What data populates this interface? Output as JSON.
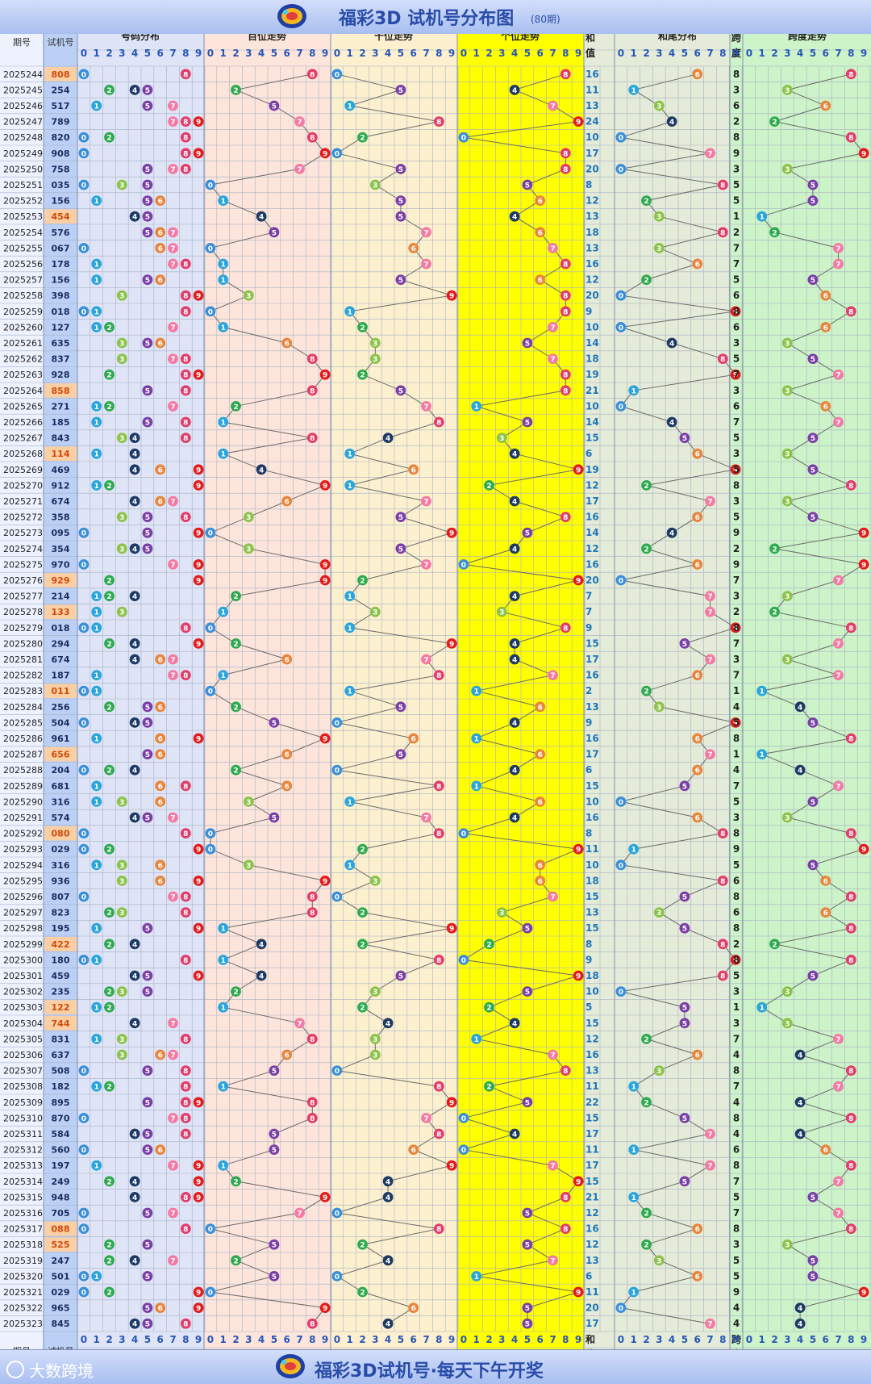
{
  "title": "福彩3D 试机号分布图",
  "title_sub": "(80期)",
  "footer_title": "福彩3D试机号·每天下午开奖",
  "watermark": "大数跨境",
  "header": {
    "issue": "期号",
    "code": "试机号",
    "dist": "号码分布",
    "hundreds": "百位走势",
    "tens": "十位走势",
    "units": "个位走势",
    "sum1": "和",
    "sum2": "值",
    "sumtail": "和尾分布",
    "span1": "跨",
    "span2": "度",
    "spantrend": "跨度走势"
  },
  "digits": [
    "0",
    "1",
    "2",
    "3",
    "4",
    "5",
    "6",
    "7",
    "8",
    "9"
  ],
  "colors": {
    "0": "#3a8fd9",
    "1": "#2aa5dc",
    "2": "#2eaa4f",
    "3": "#8cc34a",
    "4": "#1d3a66",
    "5": "#7a3fa6",
    "6": "#e9853a",
    "7": "#f57aa3",
    "8": "#e23d6a",
    "9": "#e51a1a"
  },
  "chart_data": {
    "type": "table",
    "start_issue": 2025244,
    "issues": [
      "2025244",
      "2025245",
      "2025246",
      "2025247",
      "2025248",
      "2025249",
      "2025250",
      "2025251",
      "2025252",
      "2025253",
      "2025254",
      "2025255",
      "2025256",
      "2025257",
      "2025258",
      "2025259",
      "2025260",
      "2025261",
      "2025262",
      "2025263",
      "2025264",
      "2025265",
      "2025266",
      "2025267",
      "2025268",
      "2025269",
      "2025270",
      "2025271",
      "2025272",
      "2025273",
      "2025274",
      "2025275",
      "2025276",
      "2025277",
      "2025278",
      "2025279",
      "2025280",
      "2025281",
      "2025282",
      "2025283",
      "2025284",
      "2025285",
      "2025286",
      "2025287",
      "2025288",
      "2025289",
      "2025290",
      "2025291",
      "2025292",
      "2025293",
      "2025294",
      "2025295",
      "2025296",
      "2025297",
      "2025298",
      "2025299",
      "2025300",
      "2025301",
      "2025302",
      "2025303",
      "2025304",
      "2025305",
      "2025306",
      "2025307",
      "2025308",
      "2025309",
      "2025310",
      "2025311",
      "2025312",
      "2025313",
      "2025314",
      "2025315",
      "2025316",
      "2025317",
      "2025318",
      "2025319",
      "2025320",
      "2025321",
      "2025322",
      "2025323"
    ],
    "codes": [
      "808",
      "254",
      "517",
      "789",
      "820",
      "908",
      "758",
      "035",
      "156",
      "454",
      "576",
      "067",
      "178",
      "156",
      "398",
      "018",
      "127",
      "635",
      "837",
      "928",
      "858",
      "271",
      "185",
      "843",
      "114",
      "469",
      "912",
      "674",
      "358",
      "095",
      "354",
      "970",
      "929",
      "214",
      "133",
      "018",
      "294",
      "674",
      "187",
      "011",
      "256",
      "504",
      "961",
      "656",
      "204",
      "681",
      "316",
      "574",
      "080",
      "029",
      "316",
      "936",
      "807",
      "823",
      "195",
      "422",
      "180",
      "459",
      "235",
      "122",
      "744",
      "831",
      "637",
      "508",
      "182",
      "895",
      "870",
      "584",
      "560",
      "197",
      "249",
      "948",
      "705",
      "088",
      "525",
      "247",
      "501",
      "029",
      "965",
      "845"
    ]
  }
}
